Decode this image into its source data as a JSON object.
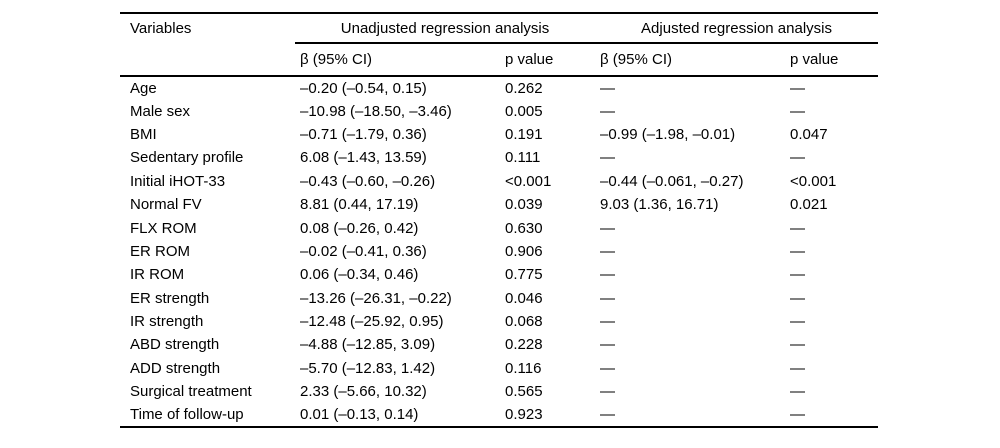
{
  "colors": {
    "background": "#ffffff",
    "text": "#000000",
    "rule": "#000000"
  },
  "table": {
    "headers": {
      "variables": "Variables",
      "unadjusted_group": "Unadjusted regression analysis",
      "adjusted_group": "Adjusted regression analysis",
      "unadjusted_beta_ci": "β (95% CI)",
      "unadjusted_p_value": "p value",
      "adjusted_beta_ci": "β (95% CI)",
      "adjusted_p_value": "p value"
    },
    "empty_value": "—",
    "rows": [
      {
        "variable": "Age",
        "unadjusted_beta_ci": "–0.20 (–0.54, 0.15)",
        "unadjusted_p": "0.262",
        "adjusted_beta_ci": "—",
        "adjusted_p": "—"
      },
      {
        "variable": "Male sex",
        "unadjusted_beta_ci": "–10.98 (–18.50, –3.46)",
        "unadjusted_p": "0.005",
        "adjusted_beta_ci": "—",
        "adjusted_p": "—"
      },
      {
        "variable": "BMI",
        "unadjusted_beta_ci": "–0.71 (–1.79, 0.36)",
        "unadjusted_p": "0.191",
        "adjusted_beta_ci": "–0.99 (–1.98, –0.01)",
        "adjusted_p": "0.047"
      },
      {
        "variable": "Sedentary profile",
        "unadjusted_beta_ci": "6.08 (–1.43, 13.59)",
        "unadjusted_p": "0.111",
        "adjusted_beta_ci": "—",
        "adjusted_p": "—"
      },
      {
        "variable": "Initial iHOT-33",
        "unadjusted_beta_ci": "–0.43 (–0.60, –0.26)",
        "unadjusted_p": "<0.001",
        "adjusted_beta_ci": "–0.44 (–0.061, –0.27)",
        "adjusted_p": "<0.001"
      },
      {
        "variable": "Normal FV",
        "unadjusted_beta_ci": "8.81 (0.44, 17.19)",
        "unadjusted_p": "0.039",
        "adjusted_beta_ci": "9.03 (1.36, 16.71)",
        "adjusted_p": "0.021"
      },
      {
        "variable": "FLX ROM",
        "unadjusted_beta_ci": "0.08 (–0.26, 0.42)",
        "unadjusted_p": "0.630",
        "adjusted_beta_ci": "—",
        "adjusted_p": "—"
      },
      {
        "variable": "ER ROM",
        "unadjusted_beta_ci": "–0.02 (–0.41, 0.36)",
        "unadjusted_p": "0.906",
        "adjusted_beta_ci": "—",
        "adjusted_p": "—"
      },
      {
        "variable": "IR ROM",
        "unadjusted_beta_ci": "0.06 (–0.34, 0.46)",
        "unadjusted_p": "0.775",
        "adjusted_beta_ci": "—",
        "adjusted_p": "—"
      },
      {
        "variable": "ER strength",
        "unadjusted_beta_ci": "–13.26 (–26.31, –0.22)",
        "unadjusted_p": "0.046",
        "adjusted_beta_ci": "—",
        "adjusted_p": "—"
      },
      {
        "variable": "IR strength",
        "unadjusted_beta_ci": "–12.48 (–25.92, 0.95)",
        "unadjusted_p": "0.068",
        "adjusted_beta_ci": "—",
        "adjusted_p": "—"
      },
      {
        "variable": "ABD strength",
        "unadjusted_beta_ci": "–4.88 (–12.85, 3.09)",
        "unadjusted_p": "0.228",
        "adjusted_beta_ci": "—",
        "adjusted_p": "—"
      },
      {
        "variable": "ADD strength",
        "unadjusted_beta_ci": "–5.70 (–12.83, 1.42)",
        "unadjusted_p": "0.116",
        "adjusted_beta_ci": "—",
        "adjusted_p": "—"
      },
      {
        "variable": "Surgical treatment",
        "unadjusted_beta_ci": "2.33 (–5.66, 10.32)",
        "unadjusted_p": "0.565",
        "adjusted_beta_ci": "—",
        "adjusted_p": "—"
      },
      {
        "variable": "Time of follow-up",
        "unadjusted_beta_ci": "0.01 (–0.13, 0.14)",
        "unadjusted_p": "0.923",
        "adjusted_beta_ci": "—",
        "adjusted_p": "—"
      }
    ]
  }
}
